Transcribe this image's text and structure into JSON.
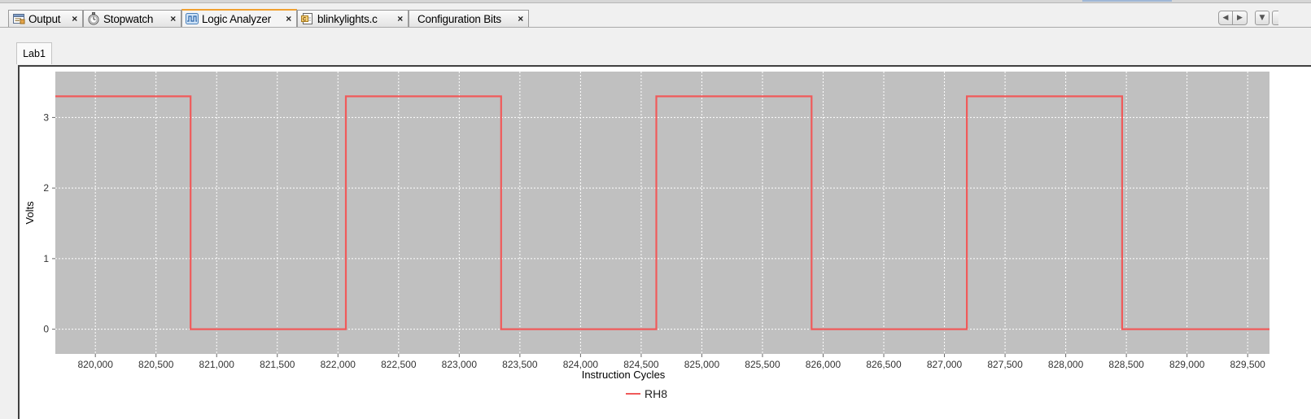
{
  "tabs": [
    {
      "label": "Output",
      "icon": "output-window-icon",
      "active": false
    },
    {
      "label": "Stopwatch",
      "icon": "stopwatch-icon",
      "active": false
    },
    {
      "label": "Logic Analyzer",
      "icon": "logic-analyzer-icon",
      "active": true
    },
    {
      "label": "blinkylights.c",
      "icon": "c-source-file-icon",
      "active": false
    },
    {
      "label": "Configuration Bits",
      "icon": "",
      "active": false
    }
  ],
  "tab_close_glyph": "×",
  "nav": {
    "prev_glyph": "◀",
    "next_glyph": "▶",
    "menu_glyph": "▼"
  },
  "subtab": {
    "label": "Lab1"
  },
  "colors": {
    "plot_background": "#c0c0c0",
    "signal": "#f05a5a",
    "grid": "#ffffff",
    "active_tab_accent": "#f0a030"
  },
  "chart_data": {
    "type": "line",
    "step": true,
    "xlabel": "Instruction Cycles",
    "ylabel": "Volts",
    "xlim": [
      819670,
      829680
    ],
    "ylim": [
      -0.35,
      3.65
    ],
    "xticks": [
      820000,
      820500,
      821000,
      821500,
      822000,
      822500,
      823000,
      823500,
      824000,
      824500,
      825000,
      825500,
      826000,
      826500,
      827000,
      827500,
      828000,
      828500,
      829000,
      829500
    ],
    "xtick_labels": [
      "820,000",
      "820,500",
      "821,000",
      "821,500",
      "822,000",
      "822,500",
      "823,000",
      "823,500",
      "824,000",
      "824,500",
      "825,000",
      "825,500",
      "826,000",
      "826,500",
      "827,000",
      "827,500",
      "828,000",
      "828,500",
      "829,000",
      "829,500"
    ],
    "yticks": [
      0,
      1,
      2,
      3
    ],
    "ytick_labels": [
      "0",
      "1",
      "2",
      "3"
    ],
    "grid": true,
    "legend_position": "bottom-center",
    "series": [
      {
        "name": "RH8",
        "x": [
          819670,
          820785,
          820785,
          822065,
          822065,
          823345,
          823345,
          824625,
          824625,
          825905,
          825905,
          827185,
          827185,
          828465,
          828465,
          829680
        ],
        "y": [
          3.3,
          3.3,
          0,
          0,
          3.3,
          3.3,
          0,
          0,
          3.3,
          3.3,
          0,
          0,
          3.3,
          3.3,
          0,
          0
        ]
      }
    ]
  }
}
